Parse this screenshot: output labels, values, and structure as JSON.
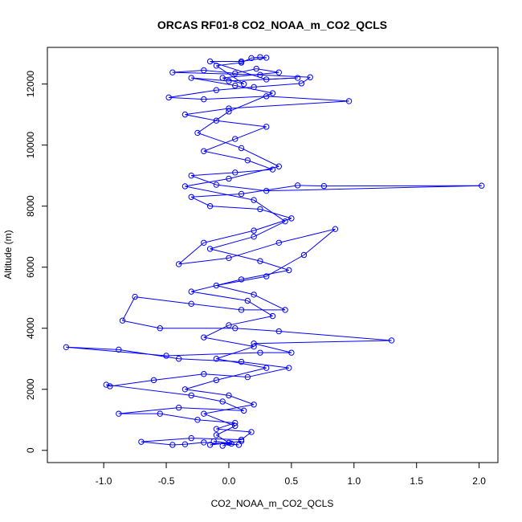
{
  "chart_data": {
    "type": "scatter",
    "title": "ORCAS RF01-8 CO2_NOAA_m_CO2_QCLS",
    "xlabel": "CO2_NOAA_m_CO2_QCLS",
    "ylabel": "Altitude (m)",
    "xlim": [
      -1.45,
      2.15
    ],
    "ylim": [
      -400,
      13200
    ],
    "xticks": [
      -1.0,
      -0.5,
      0.0,
      0.5,
      1.0,
      1.5,
      2.0
    ],
    "xtick_labels": [
      "-1.0",
      "-0.5",
      "0.0",
      "0.5",
      "1.0",
      "1.5",
      "2.0"
    ],
    "yticks": [
      0,
      2000,
      4000,
      6000,
      8000,
      10000,
      12000
    ],
    "ytick_labels": [
      "0",
      "2000",
      "4000",
      "6000",
      "8000",
      "10000",
      "12000"
    ],
    "grid": false,
    "colors": {
      "series": "#0000ff",
      "axis": "#000000",
      "background": "#ffffff"
    },
    "series": [
      {
        "style": "points-and-lines",
        "points": [
          [
            -0.05,
            150
          ],
          [
            0.02,
            220
          ],
          [
            -0.12,
            300
          ],
          [
            0.08,
            180
          ],
          [
            -0.2,
            260
          ],
          [
            -0.35,
            200
          ],
          [
            -0.45,
            180
          ],
          [
            -0.7,
            280
          ],
          [
            -0.3,
            400
          ],
          [
            0.1,
            350
          ],
          [
            0.18,
            600
          ],
          [
            -0.1,
            700
          ],
          [
            0.05,
            900
          ],
          [
            -0.25,
            1000
          ],
          [
            -0.55,
            1200
          ],
          [
            -0.88,
            1200
          ],
          [
            -0.4,
            1400
          ],
          [
            0.12,
            1300
          ],
          [
            -0.05,
            1600
          ],
          [
            -0.3,
            1800
          ],
          [
            -0.98,
            2150
          ],
          [
            -0.95,
            2100
          ],
          [
            -0.6,
            2300
          ],
          [
            -0.2,
            2500
          ],
          [
            0.15,
            2400
          ],
          [
            0.48,
            2700
          ],
          [
            0.1,
            2900
          ],
          [
            -0.4,
            3000
          ],
          [
            -0.88,
            3300
          ],
          [
            -1.3,
            3380
          ],
          [
            -0.5,
            3100
          ],
          [
            0.25,
            3200
          ],
          [
            0.5,
            3200
          ],
          [
            0.2,
            3500
          ],
          [
            1.3,
            3600
          ],
          [
            0.4,
            3900
          ],
          [
            0.05,
            4000
          ],
          [
            -0.55,
            4000
          ],
          [
            -0.85,
            4250
          ],
          [
            -0.75,
            5030
          ],
          [
            -0.3,
            4800
          ],
          [
            0.1,
            4600
          ],
          [
            0.45,
            4600
          ],
          [
            0.2,
            5100
          ],
          [
            -0.1,
            5400
          ],
          [
            0.3,
            5700
          ],
          [
            0.6,
            6400
          ],
          [
            0.85,
            7250
          ],
          [
            0.4,
            6800
          ],
          [
            0.0,
            6300
          ],
          [
            -0.4,
            6100
          ],
          [
            -0.2,
            6800
          ],
          [
            0.2,
            7200
          ],
          [
            0.5,
            7600
          ],
          [
            0.25,
            7900
          ],
          [
            -0.15,
            8000
          ],
          [
            -0.3,
            8300
          ],
          [
            0.1,
            8400
          ],
          [
            0.55,
            8680
          ],
          [
            0.76,
            8660
          ],
          [
            2.02,
            8670
          ],
          [
            0.3,
            8500
          ],
          [
            -0.1,
            8700
          ],
          [
            -0.3,
            9000
          ],
          [
            0.05,
            9100
          ],
          [
            0.35,
            9200
          ],
          [
            0.15,
            9500
          ],
          [
            -0.2,
            9800
          ],
          [
            0.05,
            10200
          ],
          [
            0.3,
            10600
          ],
          [
            -0.1,
            10800
          ],
          [
            -0.35,
            11000
          ],
          [
            0.0,
            11200
          ],
          [
            0.96,
            11440
          ],
          [
            0.3,
            11600
          ],
          [
            -0.2,
            11500
          ],
          [
            -0.48,
            11560
          ],
          [
            -0.1,
            11800
          ],
          [
            0.2,
            11900
          ],
          [
            0.58,
            12020
          ],
          [
            0.65,
            12220
          ],
          [
            0.25,
            12300
          ],
          [
            -0.45,
            12380
          ],
          [
            -0.2,
            12450
          ],
          [
            0.05,
            12350
          ],
          [
            0.22,
            12500
          ],
          [
            0.4,
            12380
          ],
          [
            -0.05,
            12200
          ],
          [
            0.12,
            12000
          ],
          [
            -0.1,
            12600
          ],
          [
            0.1,
            12700
          ],
          [
            0.18,
            12850
          ],
          [
            0.25,
            12880
          ],
          [
            0.3,
            12860
          ],
          [
            0.1,
            12740
          ],
          [
            -0.15,
            12740
          ],
          [
            0.3,
            12150
          ],
          [
            0.55,
            12200
          ],
          [
            0.0,
            12100
          ],
          [
            -0.3,
            12200
          ],
          [
            0.05,
            11950
          ],
          [
            0.35,
            11700
          ],
          [
            0.0,
            11100
          ],
          [
            -0.25,
            10400
          ],
          [
            0.1,
            9900
          ],
          [
            0.4,
            9300
          ],
          [
            0.0,
            8900
          ],
          [
            -0.35,
            8650
          ],
          [
            0.2,
            8200
          ],
          [
            0.45,
            7500
          ],
          [
            0.2,
            7000
          ],
          [
            -0.15,
            6600
          ],
          [
            0.25,
            6200
          ],
          [
            0.48,
            5900
          ],
          [
            0.1,
            5600
          ],
          [
            -0.3,
            5200
          ],
          [
            0.15,
            4900
          ],
          [
            0.35,
            4400
          ],
          [
            0.0,
            4100
          ],
          [
            -0.2,
            3700
          ],
          [
            0.2,
            3400
          ],
          [
            -0.1,
            3000
          ],
          [
            0.3,
            2700
          ],
          [
            -0.1,
            2300
          ],
          [
            -0.35,
            2000
          ],
          [
            0.0,
            1800
          ],
          [
            0.2,
            1500
          ],
          [
            -0.2,
            1200
          ],
          [
            0.05,
            800
          ],
          [
            -0.1,
            500
          ],
          [
            0.0,
            250
          ],
          [
            -0.15,
            180
          ],
          [
            0.1,
            300
          ]
        ]
      }
    ]
  }
}
